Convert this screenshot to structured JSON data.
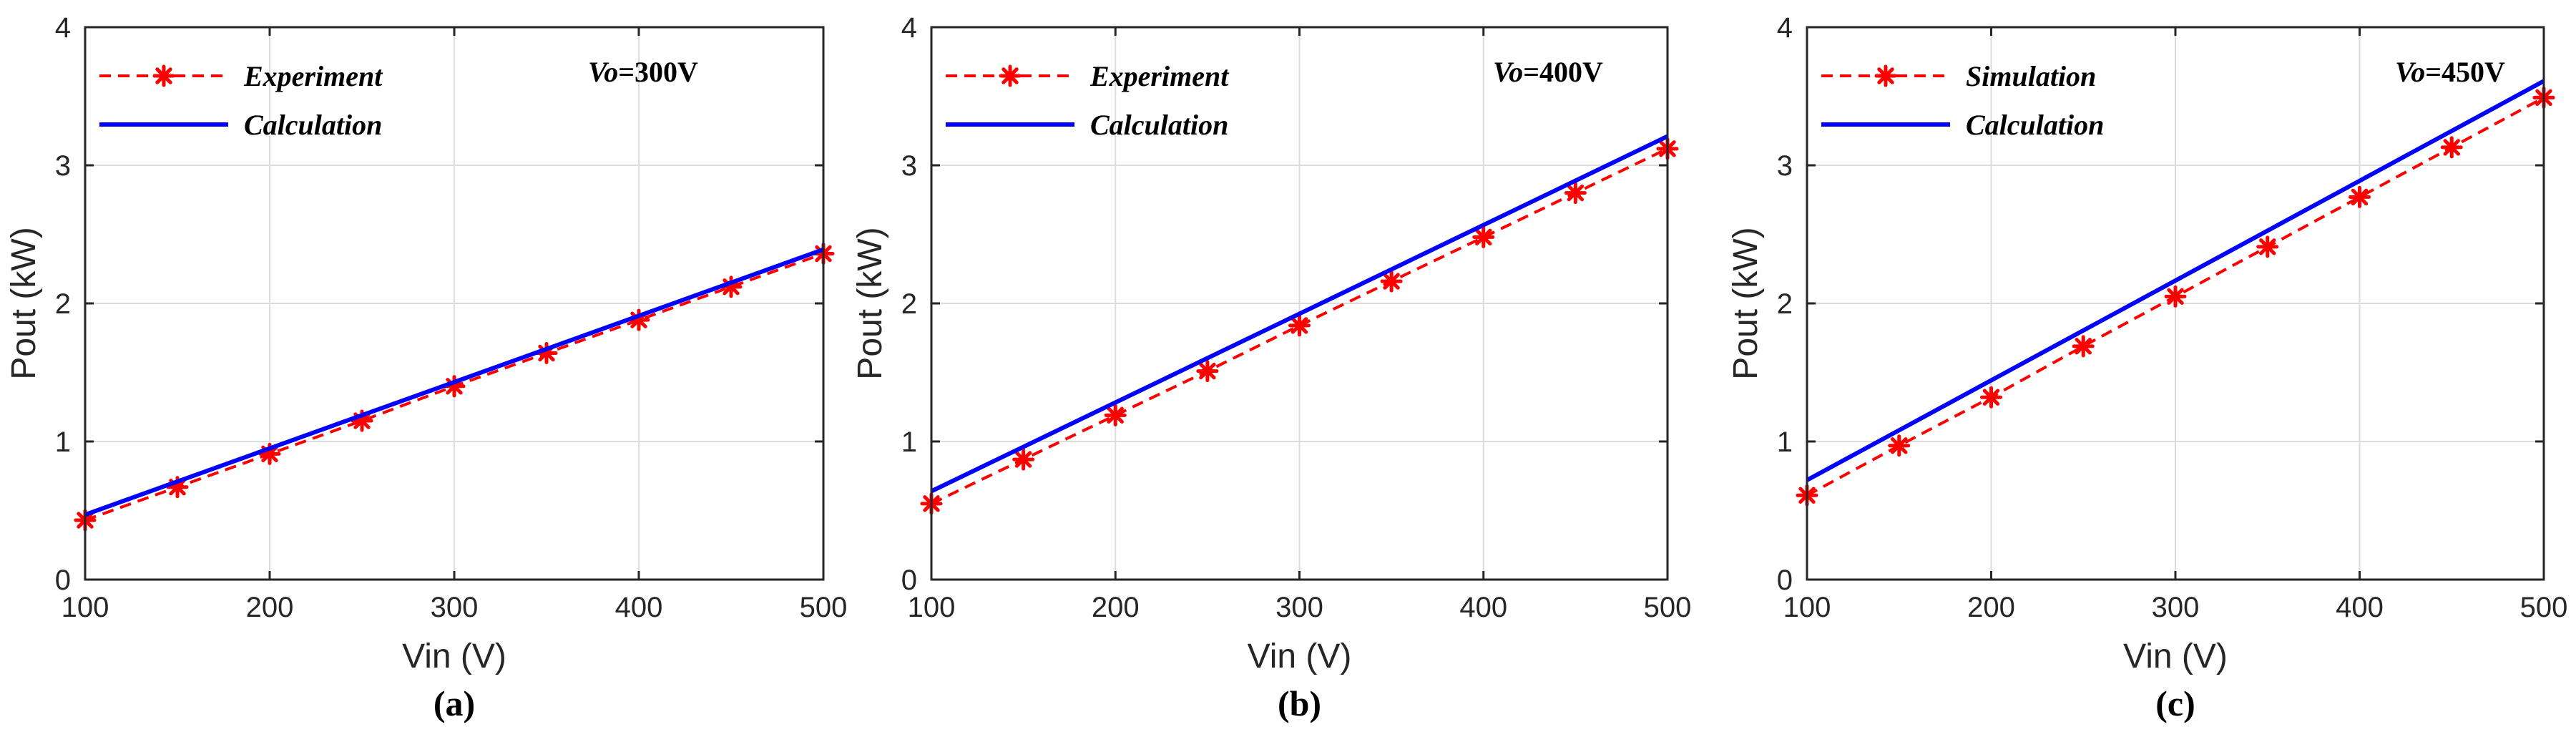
{
  "chart_data": [
    {
      "type": "line",
      "panel_label": "(a)",
      "xlabel": "Vin (V)",
      "ylabel": "Pout (kW)",
      "xlim": [
        100,
        500
      ],
      "ylim": [
        0,
        4
      ],
      "xticks": [
        "100",
        "200",
        "300",
        "400",
        "500"
      ],
      "yticks": [
        "0",
        "1",
        "2",
        "3",
        "4"
      ],
      "grid": true,
      "legend_position": "top-left",
      "annotation": {
        "var": "Vo",
        "eq": "=300V"
      },
      "series": [
        {
          "name": "Experiment",
          "style": "dashed-marker",
          "color": "#ff0000",
          "x": [
            100,
            150,
            200,
            250,
            300,
            350,
            400,
            450,
            500
          ],
          "values": [
            0.43,
            0.67,
            0.91,
            1.15,
            1.4,
            1.64,
            1.88,
            2.12,
            2.36
          ]
        },
        {
          "name": "Calculation",
          "style": "solid",
          "color": "#0000ff",
          "x": [
            100,
            500
          ],
          "values": [
            0.47,
            2.39
          ]
        }
      ]
    },
    {
      "type": "line",
      "panel_label": "(b)",
      "xlabel": "Vin (V)",
      "ylabel": "Pout (kW)",
      "xlim": [
        100,
        500
      ],
      "ylim": [
        0,
        4
      ],
      "xticks": [
        "100",
        "200",
        "300",
        "400",
        "500"
      ],
      "yticks": [
        "0",
        "1",
        "2",
        "3",
        "4"
      ],
      "grid": true,
      "legend_position": "top-left",
      "annotation": {
        "var": "Vo",
        "eq": "=400V"
      },
      "series": [
        {
          "name": "Experiment",
          "style": "dashed-marker",
          "color": "#ff0000",
          "x": [
            100,
            150,
            200,
            250,
            300,
            350,
            400,
            450,
            500
          ],
          "values": [
            0.55,
            0.87,
            1.19,
            1.51,
            1.84,
            2.16,
            2.48,
            2.8,
            3.12
          ]
        },
        {
          "name": "Calculation",
          "style": "solid",
          "color": "#0000ff",
          "x": [
            100,
            500
          ],
          "values": [
            0.64,
            3.21
          ]
        }
      ]
    },
    {
      "type": "line",
      "panel_label": "(c)",
      "xlabel": "Vin (V)",
      "ylabel": "Pout (kW)",
      "xlim": [
        100,
        500
      ],
      "ylim": [
        0,
        4
      ],
      "xticks": [
        "100",
        "200",
        "300",
        "400",
        "500"
      ],
      "yticks": [
        "0",
        "1",
        "2",
        "3",
        "4"
      ],
      "grid": true,
      "legend_position": "top-left",
      "annotation": {
        "var": "Vo",
        "eq": "=450V"
      },
      "series": [
        {
          "name": "Simulation",
          "style": "dashed-marker",
          "color": "#ff0000",
          "x": [
            100,
            150,
            200,
            250,
            300,
            350,
            400,
            450,
            500
          ],
          "values": [
            0.61,
            0.97,
            1.32,
            1.69,
            2.05,
            2.41,
            2.77,
            3.13,
            3.49
          ]
        },
        {
          "name": "Calculation",
          "style": "solid",
          "color": "#0000ff",
          "x": [
            100,
            500
          ],
          "values": [
            0.72,
            3.61
          ]
        }
      ]
    }
  ]
}
